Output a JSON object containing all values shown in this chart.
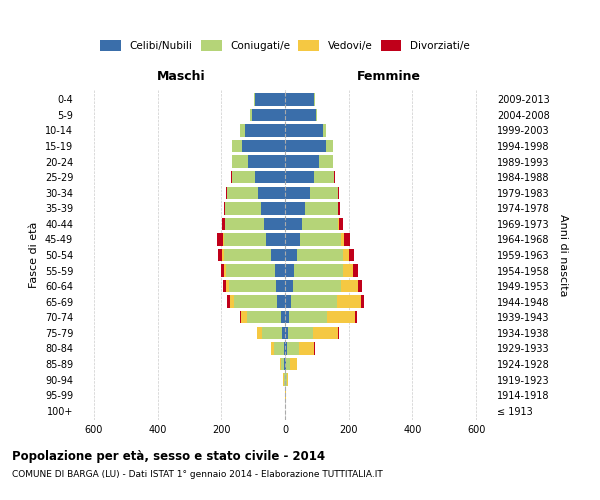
{
  "age_groups": [
    "100+",
    "95-99",
    "90-94",
    "85-89",
    "80-84",
    "75-79",
    "70-74",
    "65-69",
    "60-64",
    "55-59",
    "50-54",
    "45-49",
    "40-44",
    "35-39",
    "30-34",
    "25-29",
    "20-24",
    "15-19",
    "10-14",
    "5-9",
    "0-4"
  ],
  "year_labels": [
    "≤ 1913",
    "1914-1918",
    "1919-1923",
    "1924-1928",
    "1929-1933",
    "1934-1938",
    "1939-1943",
    "1944-1948",
    "1949-1953",
    "1954-1958",
    "1959-1963",
    "1964-1968",
    "1969-1973",
    "1974-1978",
    "1979-1983",
    "1984-1988",
    "1989-1993",
    "1994-1998",
    "1999-2003",
    "2004-2008",
    "2009-2013"
  ],
  "males_celibi": [
    0,
    0,
    1,
    2,
    4,
    8,
    14,
    25,
    28,
    32,
    45,
    60,
    65,
    75,
    85,
    95,
    115,
    135,
    125,
    105,
    95
  ],
  "males_coniugati": [
    0,
    1,
    3,
    12,
    32,
    65,
    105,
    135,
    148,
    152,
    148,
    132,
    122,
    112,
    97,
    72,
    52,
    32,
    17,
    6,
    3
  ],
  "males_vedovi": [
    0,
    0,
    1,
    3,
    8,
    14,
    18,
    14,
    9,
    7,
    4,
    3,
    2,
    1,
    0,
    0,
    0,
    0,
    0,
    0,
    0
  ],
  "males_divorziati": [
    0,
    0,
    0,
    0,
    1,
    2,
    4,
    7,
    9,
    11,
    13,
    18,
    9,
    4,
    2,
    1,
    0,
    0,
    0,
    0,
    0
  ],
  "females_nubili": [
    0,
    0,
    1,
    3,
    5,
    9,
    14,
    19,
    24,
    28,
    38,
    48,
    53,
    62,
    78,
    92,
    108,
    128,
    118,
    98,
    92
  ],
  "females_coniugate": [
    0,
    1,
    4,
    14,
    38,
    78,
    118,
    143,
    153,
    153,
    145,
    128,
    113,
    103,
    88,
    63,
    43,
    23,
    11,
    4,
    2
  ],
  "females_vedove": [
    0,
    1,
    5,
    20,
    48,
    78,
    88,
    78,
    53,
    33,
    18,
    9,
    4,
    2,
    1,
    0,
    0,
    0,
    0,
    0,
    0
  ],
  "females_divorziate": [
    0,
    0,
    0,
    1,
    2,
    3,
    5,
    7,
    11,
    14,
    17,
    20,
    11,
    5,
    2,
    1,
    1,
    0,
    0,
    0,
    0
  ],
  "color_celibi": "#3a6eaa",
  "color_coniugati": "#b5d478",
  "color_vedovi": "#f5c842",
  "color_divorziati": "#c0001a",
  "title": "Popolazione per età, sesso e stato civile - 2014",
  "subtitle": "COMUNE DI BARGA (LU) - Dati ISTAT 1° gennaio 2014 - Elaborazione TUTTITALIA.IT",
  "ylabel_left": "Fasce di età",
  "ylabel_right": "Anni di nascita",
  "header_maschi": "Maschi",
  "header_femmine": "Femmine",
  "legend_labels": [
    "Celibi/Nubili",
    "Coniugati/e",
    "Vedovi/e",
    "Divorziati/e"
  ]
}
